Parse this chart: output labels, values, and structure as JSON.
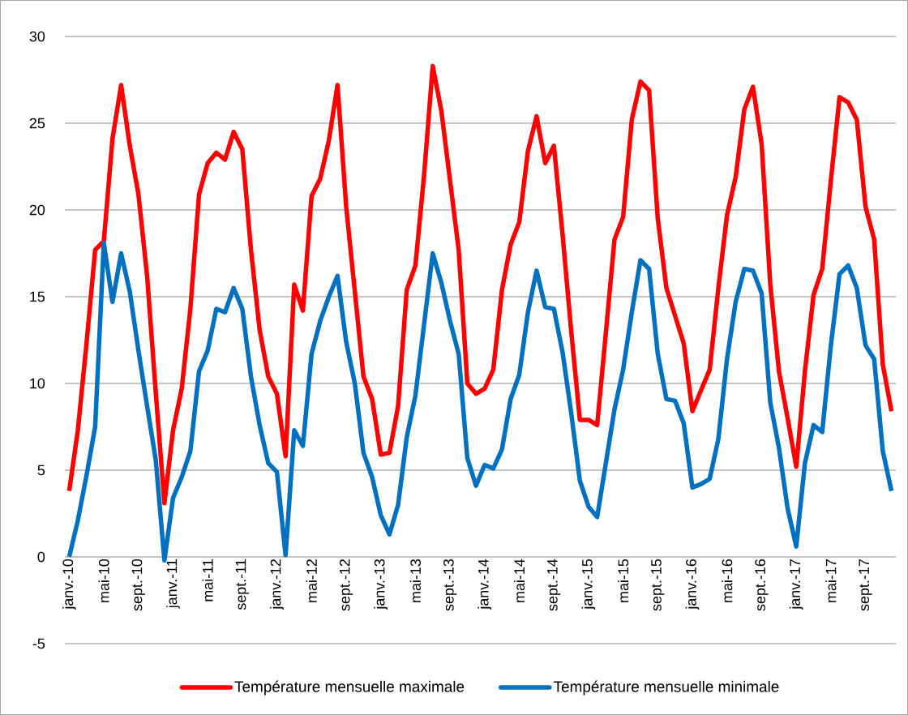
{
  "chart_data": {
    "type": "line",
    "categories": [
      "janv.-10",
      null,
      null,
      null,
      "mai-10",
      null,
      null,
      null,
      "sept.-10",
      null,
      null,
      null,
      "janv.-11",
      null,
      null,
      null,
      "mai-11",
      null,
      null,
      null,
      "sept.-11",
      null,
      null,
      null,
      "janv.-12",
      null,
      null,
      null,
      "mai-12",
      null,
      null,
      null,
      "sept.-12",
      null,
      null,
      null,
      "janv.-13",
      null,
      null,
      null,
      "mai-13",
      null,
      null,
      null,
      "sept.-13",
      null,
      null,
      null,
      "janv.-14",
      null,
      null,
      null,
      "mai-14",
      null,
      null,
      null,
      "sept.-14",
      null,
      null,
      null,
      "janv.-15",
      null,
      null,
      null,
      "mai-15",
      null,
      null,
      null,
      "sept.-15",
      null,
      null,
      null,
      "janv.-16",
      null,
      null,
      null,
      "mai-16",
      null,
      null,
      null,
      "sept.-16",
      null,
      null,
      null,
      "janv.-17",
      null,
      null,
      null,
      "mai-17",
      null,
      null,
      null,
      "sept.-17",
      null,
      null,
      null
    ],
    "series": [
      {
        "name": "Température mensuelle maximale",
        "color": "#ff0000",
        "values": [
          3.8,
          7.3,
          12.3,
          17.7,
          18.2,
          24.1,
          27.2,
          23.7,
          20.9,
          16.2,
          9.5,
          3.1,
          7.3,
          9.7,
          14.3,
          20.9,
          22.7,
          23.3,
          22.9,
          24.5,
          23.5,
          17.7,
          13.1,
          10.4,
          9.4,
          5.8,
          15.7,
          14.2,
          20.8,
          21.8,
          24.0,
          27.2,
          20.2,
          15.3,
          10.4,
          9.1,
          5.9,
          6.0,
          8.7,
          15.4,
          16.8,
          22.0,
          28.3,
          25.7,
          21.7,
          17.7,
          10.0,
          9.4,
          9.7,
          10.8,
          15.4,
          18.0,
          19.3,
          23.4,
          25.4,
          22.7,
          23.7,
          18.6,
          13.0,
          7.9,
          7.9,
          7.6,
          12.9,
          18.3,
          19.6,
          25.2,
          27.4,
          26.9,
          19.5,
          15.5,
          13.9,
          12.3,
          8.4,
          9.6,
          10.8,
          15.5,
          19.7,
          21.9,
          25.8,
          27.1,
          23.8,
          15.7,
          10.7,
          8.0,
          5.2,
          10.7,
          15.1,
          16.6,
          21.7,
          26.5,
          26.2,
          25.2,
          20.2,
          18.3,
          11.1,
          8.4
        ]
      },
      {
        "name": "Température mensuelle minimale",
        "color": "#0070c0",
        "values": [
          0,
          2.1,
          4.7,
          7.5,
          18.1,
          14.7,
          17.5,
          15.3,
          11.9,
          8.7,
          5.6,
          -0.2,
          3.4,
          4.6,
          6.1,
          10.7,
          11.9,
          14.3,
          14.1,
          15.5,
          14.3,
          10.4,
          7.6,
          5.4,
          4.9,
          0.1,
          7.3,
          6.4,
          11.7,
          13.6,
          15.0,
          16.2,
          12.4,
          10.0,
          6.0,
          4.6,
          2.4,
          1.3,
          3.0,
          6.9,
          9.3,
          13.4,
          17.5,
          15.8,
          13.6,
          11.7,
          5.7,
          4.1,
          5.3,
          5.1,
          6.2,
          9.1,
          10.5,
          14.1,
          16.5,
          14.4,
          14.3,
          11.8,
          8.3,
          4.4,
          2.9,
          2.3,
          5.4,
          8.5,
          10.8,
          14.1,
          17.1,
          16.6,
          11.7,
          9.1,
          9.0,
          7.7,
          4.0,
          4.2,
          4.5,
          6.8,
          11.4,
          14.7,
          16.6,
          16.5,
          15.2,
          8.9,
          6.3,
          2.8,
          0.6,
          5.4,
          7.6,
          7.2,
          12.2,
          16.3,
          16.8,
          15.5,
          12.2,
          11.4,
          6.1,
          3.8
        ]
      }
    ],
    "ylim": [
      -5,
      30
    ],
    "yticks": [
      -5,
      0,
      5,
      10,
      15,
      20,
      25,
      30
    ],
    "grid": "y",
    "legend": "bottom",
    "marker": "none",
    "line_style": "solid"
  }
}
